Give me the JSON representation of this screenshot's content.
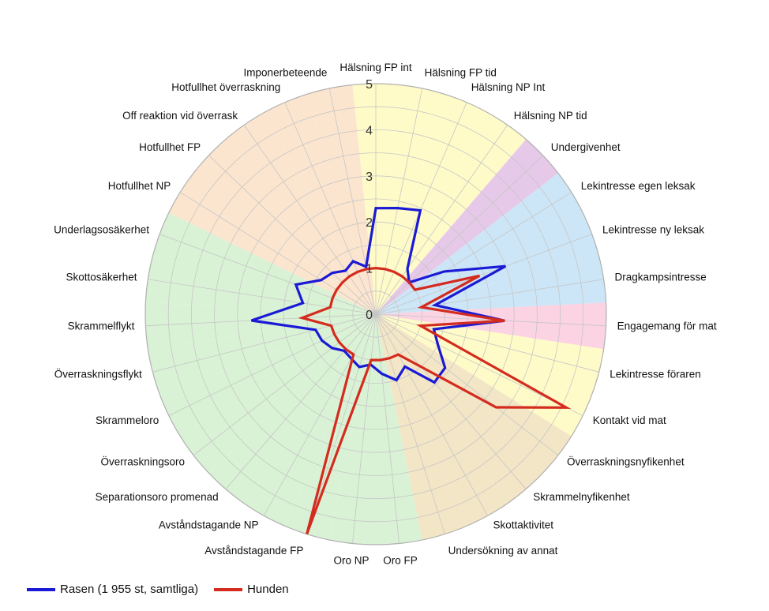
{
  "chart_data": {
    "type": "radar",
    "title": "",
    "rlim": [
      0,
      5
    ],
    "r_ticks": [
      "0",
      "1",
      "2",
      "3",
      "4",
      "5"
    ],
    "categories": [
      "Hälsning FP int",
      "Hälsning FP tid",
      "Hälsning NP Int",
      "Hälsning NP tid",
      "Undergivenhet",
      "Lekintresse egen leksak",
      "Lekintresse ny leksak",
      "Dragkampsintresse",
      "Engagemang för mat",
      "Lekintresse föraren",
      "Kontakt vid mat",
      "Överraskningsnyfikenhet",
      "Skrammelnyfikenhet",
      "Skottaktivitet",
      "Undersökning av annat",
      "Oro FP",
      "Oro NP",
      "Avståndstagande FP",
      "Avståndstagande NP",
      "Separationsoro promenad",
      "Överraskningsoro",
      "Skrammeloro",
      "Överraskningsflykt",
      "Skrammelflykt",
      "Skottosäkerhet",
      "Underlagsosäkerhet",
      "Hotfullhet NP",
      "Hotfullhet FP",
      "Off reaktion vid överrask",
      "Hotfullhet överraskning",
      "Imponerbeteende"
    ],
    "series": [
      {
        "name": "Rasen (1 955 st, samtliga)",
        "color": "#1a1ad6",
        "values": [
          2.3,
          2.35,
          2.45,
          1.2,
          1.0,
          1.75,
          3.0,
          1.3,
          2.8,
          1.3,
          1.5,
          1.9,
          1.95,
          1.3,
          1.5,
          1.3,
          1.1,
          1.2,
          1.1,
          1.05,
          1.2,
          1.3,
          1.35,
          2.7,
          1.6,
          1.85,
          1.4,
          1.3,
          1.15,
          1.25,
          1.05
        ]
      },
      {
        "name": "Hunden",
        "color": "#d42b1e",
        "values": [
          1.0,
          1.0,
          1.0,
          1.0,
          1.0,
          1.0,
          2.4,
          1.0,
          2.8,
          1.0,
          4.6,
          3.3,
          1.5,
          1.0,
          1.0,
          1.0,
          1.0,
          5.0,
          1.0,
          1.0,
          1.0,
          1.0,
          1.0,
          1.6,
          1.0,
          1.0,
          1.0,
          1.0,
          1.0,
          1.0,
          1.0
        ]
      }
    ],
    "sector_colors": [
      "#fffbc8",
      "#fffbc8",
      "#fffbc8",
      "#fffbc8",
      "#e6c9e8",
      "#cce6f7",
      "#cce6f7",
      "#cce6f7",
      "#fbd3e3",
      "#fffbc8",
      "#fffbc8",
      "#f3e6c6",
      "#f3e6c6",
      "#f3e6c6",
      "#f3e6c6",
      "#d9f2d5",
      "#d9f2d5",
      "#d9f2d5",
      "#d9f2d5",
      "#d9f2d5",
      "#d9f2d5",
      "#d9f2d5",
      "#d9f2d5",
      "#d9f2d5",
      "#d9f2d5",
      "#d9f2d5",
      "#fce5cf",
      "#fce5cf",
      "#fce5cf",
      "#fce5cf",
      "#fce5cf"
    ],
    "grid": true,
    "legend_position": "bottom-left"
  }
}
